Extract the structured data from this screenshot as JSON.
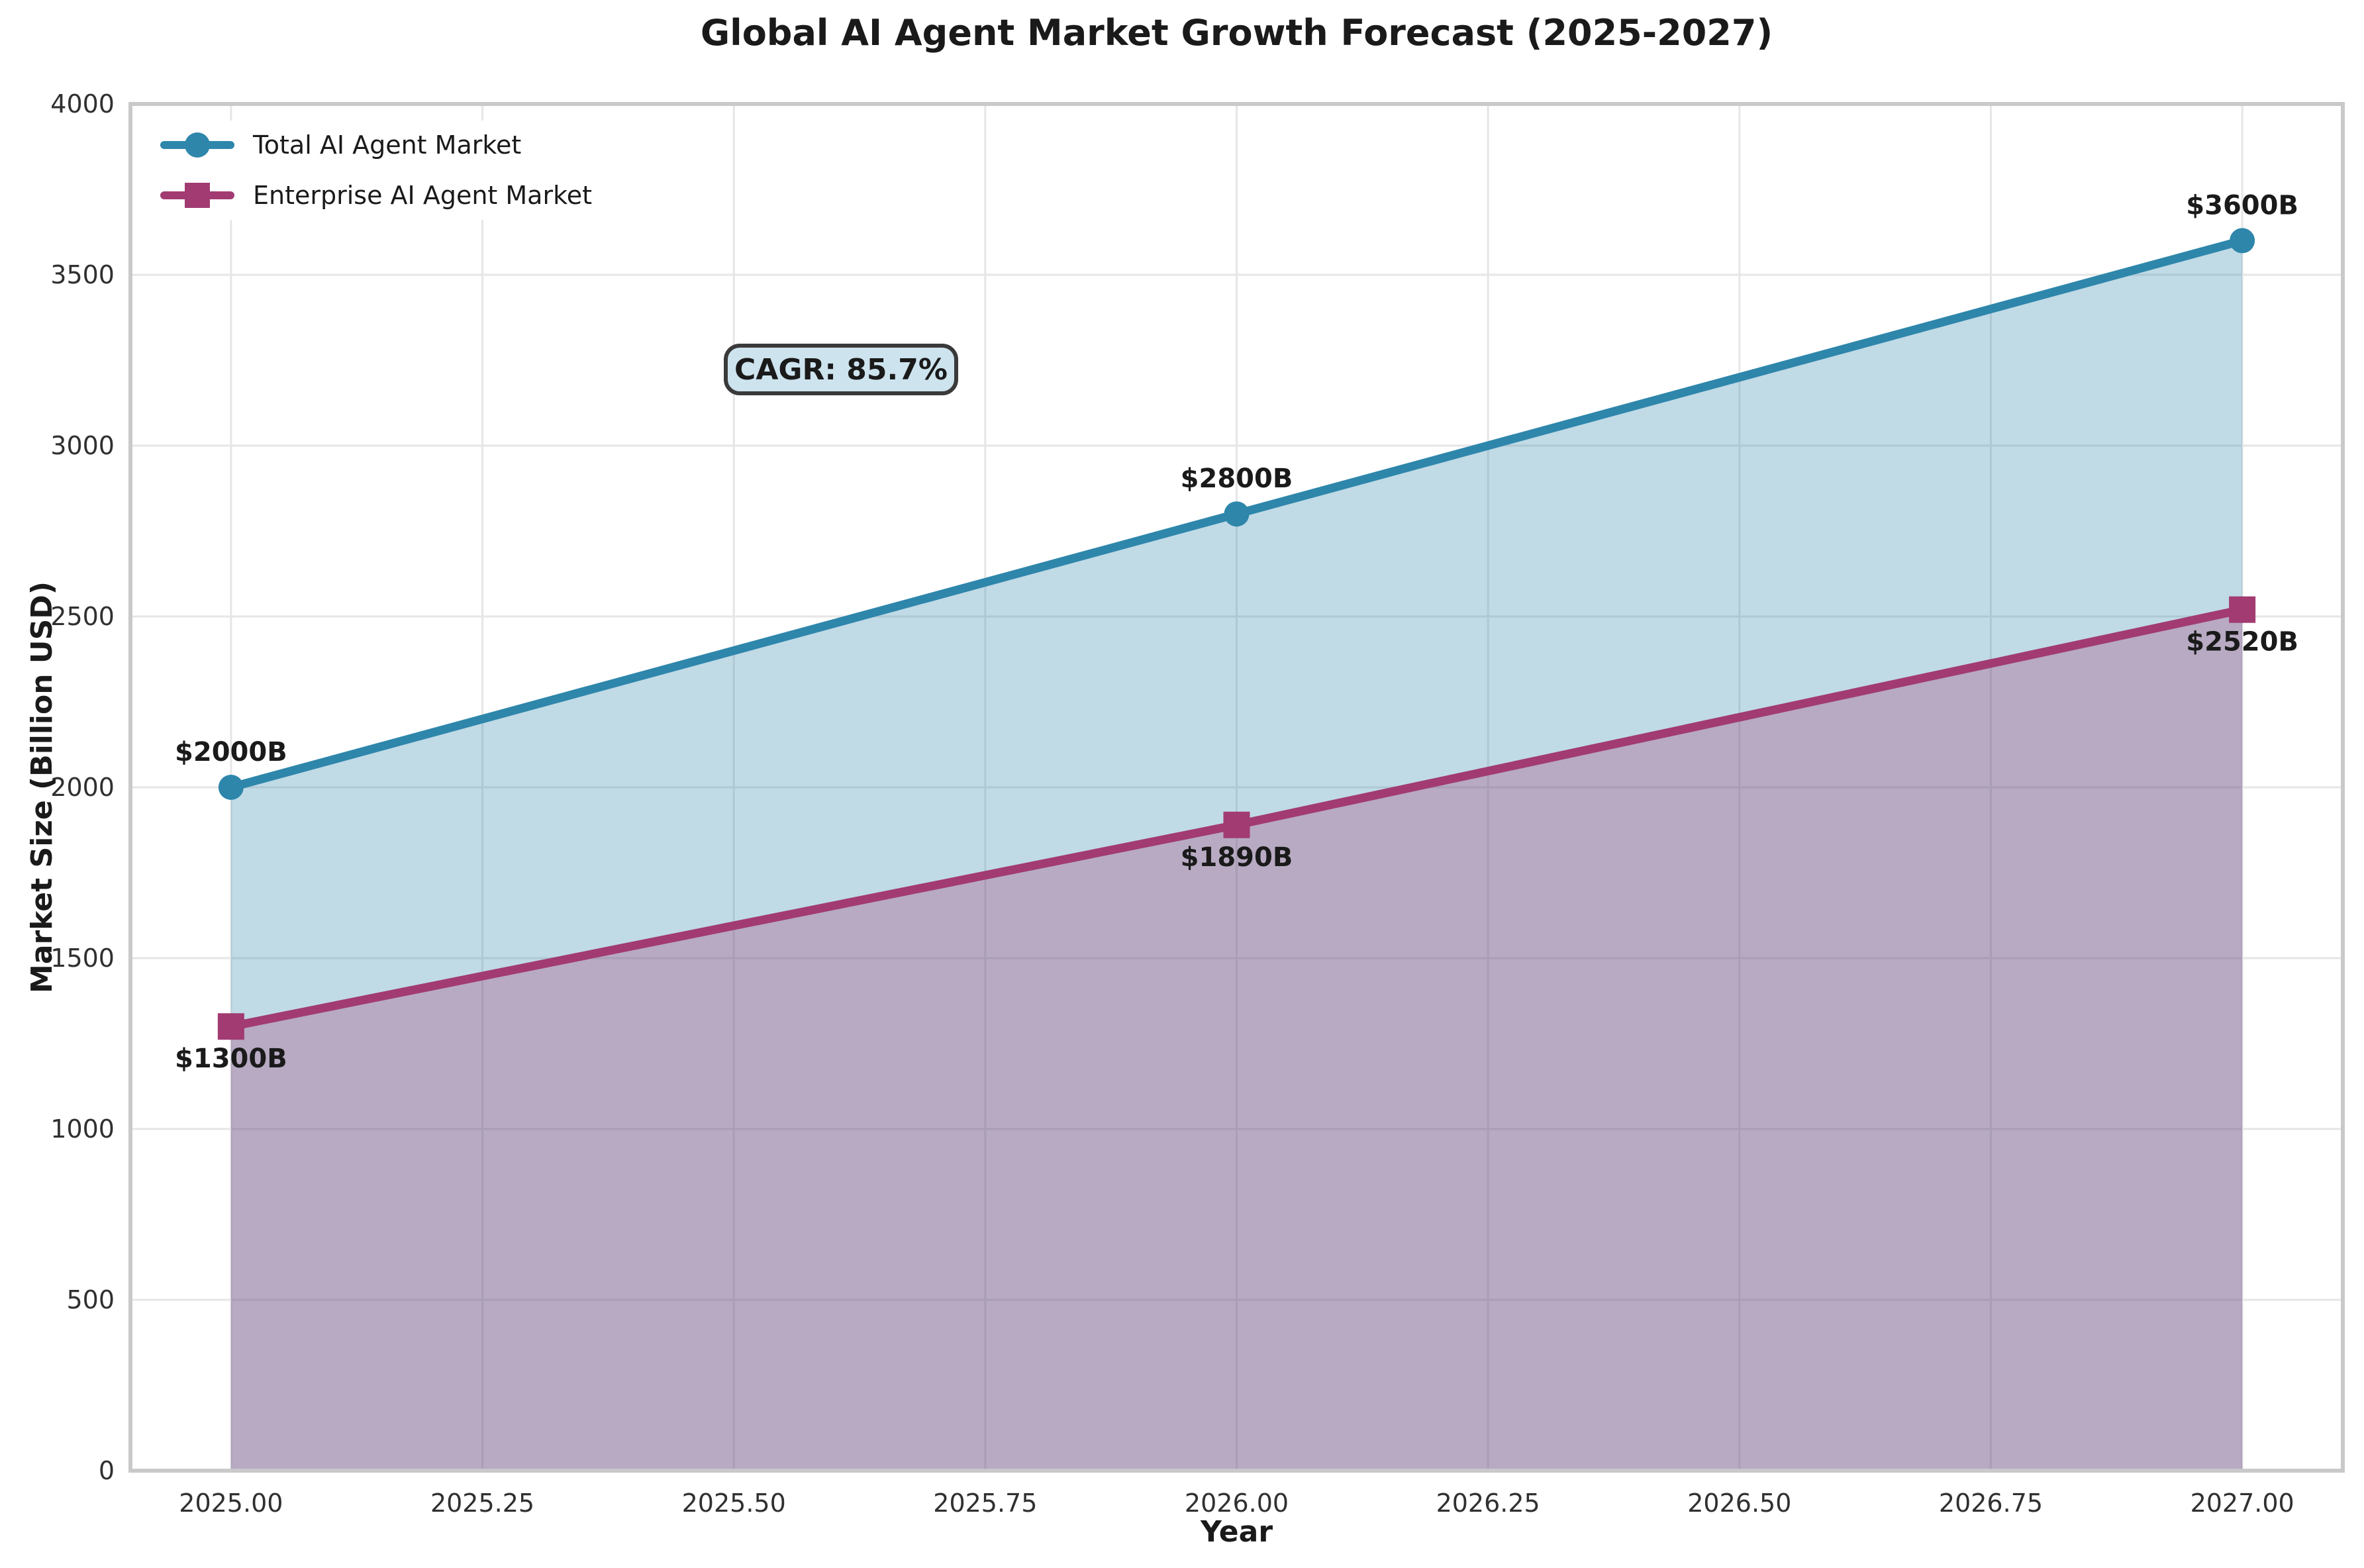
{
  "chart_data": {
    "type": "line",
    "title": "Global AI Agent Market Growth Forecast (2025-2027)",
    "xlabel": "Year",
    "ylabel": "Market Size (Billion USD)",
    "x": [
      2025,
      2026,
      2027
    ],
    "xlim": [
      2024.9,
      2027.1
    ],
    "ylim": [
      0,
      4000
    ],
    "x_tick_values": [
      2025.0,
      2025.25,
      2025.5,
      2025.75,
      2026.0,
      2026.25,
      2026.5,
      2026.75,
      2027.0
    ],
    "x_tick_labels": [
      "2025.00",
      "2025.25",
      "2025.50",
      "2025.75",
      "2026.00",
      "2026.25",
      "2026.50",
      "2026.75",
      "2027.00"
    ],
    "y_tick_values": [
      0,
      500,
      1000,
      1500,
      2000,
      2500,
      3000,
      3500,
      4000
    ],
    "y_tick_labels": [
      "0",
      "500",
      "1000",
      "1500",
      "2000",
      "2500",
      "3000",
      "3500",
      "4000"
    ],
    "grid": true,
    "legend_position": "upper left",
    "series": [
      {
        "name": "Total AI Agent Market",
        "values": [
          2000,
          2800,
          3600
        ],
        "color": "#2E86AB",
        "marker": "circle",
        "fill_to_zero": true,
        "fill_opacity": 0.3,
        "point_labels": [
          "$2000B",
          "$2800B",
          "$3600B"
        ],
        "label_position": "above"
      },
      {
        "name": "Enterprise AI Agent Market",
        "values": [
          1300,
          1890,
          2520
        ],
        "color": "#A23B72",
        "marker": "square",
        "fill_to_zero": true,
        "fill_opacity": 0.3,
        "point_labels": [
          "$1300B",
          "$1890B",
          "$2520B"
        ],
        "label_position": "below"
      }
    ],
    "annotation": {
      "text": "CAGR: 85.7%",
      "box_fill": "#cde3ee",
      "box_border": "#3a3a3a"
    },
    "colors": {
      "grid": "#e6e6e6",
      "spine": "#c9c9c9",
      "tick_text": "#303030",
      "label_text": "#1a1a1a",
      "background": "#ffffff"
    }
  }
}
